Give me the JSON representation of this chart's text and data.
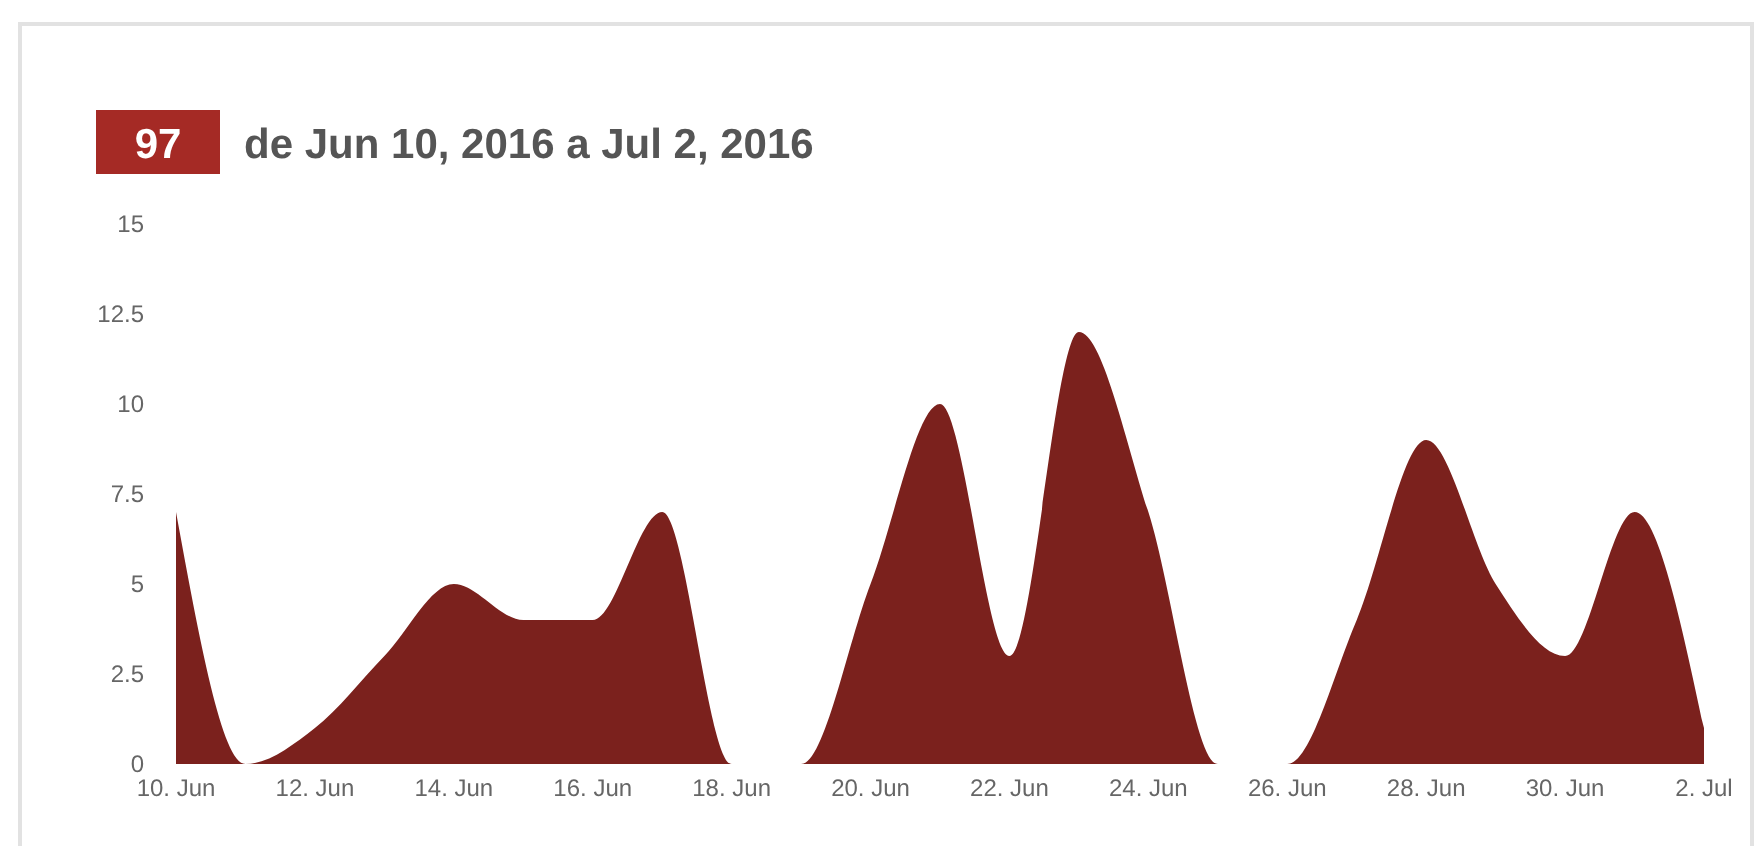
{
  "chart_data": {
    "type": "area",
    "title": "de Jun 10, 2016 a Jul 2, 2016",
    "annotations": [
      "97"
    ],
    "x": [
      "2016-06-10",
      "2016-06-11",
      "2016-06-12",
      "2016-06-13",
      "2016-06-14",
      "2016-06-15",
      "2016-06-16",
      "2016-06-17",
      "2016-06-18",
      "2016-06-19",
      "2016-06-20",
      "2016-06-21",
      "2016-06-22",
      "2016-06-23",
      "2016-06-24",
      "2016-06-25",
      "2016-06-26",
      "2016-06-27",
      "2016-06-28",
      "2016-06-29",
      "2016-06-30",
      "2016-07-01",
      "2016-07-02"
    ],
    "series": [
      {
        "color": "#7b211d",
        "values": [
          7,
          0,
          1,
          3,
          5,
          4,
          4,
          7,
          0,
          0,
          5,
          10,
          3,
          12,
          7,
          0,
          0,
          4,
          9,
          5,
          3,
          7,
          1
        ]
      }
    ],
    "xlim": [
      "2016-06-10",
      "2016-07-02"
    ],
    "xticks": [
      {
        "value": "2016-06-10",
        "label": "10. Jun"
      },
      {
        "value": "2016-06-12",
        "label": "12. Jun"
      },
      {
        "value": "2016-06-14",
        "label": "14. Jun"
      },
      {
        "value": "2016-06-16",
        "label": "16. Jun"
      },
      {
        "value": "2016-06-18",
        "label": "18. Jun"
      },
      {
        "value": "2016-06-20",
        "label": "20. Jun"
      },
      {
        "value": "2016-06-22",
        "label": "22. Jun"
      },
      {
        "value": "2016-06-24",
        "label": "24. Jun"
      },
      {
        "value": "2016-06-26",
        "label": "26. Jun"
      },
      {
        "value": "2016-06-28",
        "label": "28. Jun"
      },
      {
        "value": "2016-06-30",
        "label": "30. Jun"
      },
      {
        "value": "2016-07-02",
        "label": "2. Jul"
      }
    ],
    "ylim": [
      0,
      15
    ],
    "yticks": [
      0,
      2.5,
      5,
      7.5,
      10,
      12.5,
      15
    ],
    "grid": false
  }
}
